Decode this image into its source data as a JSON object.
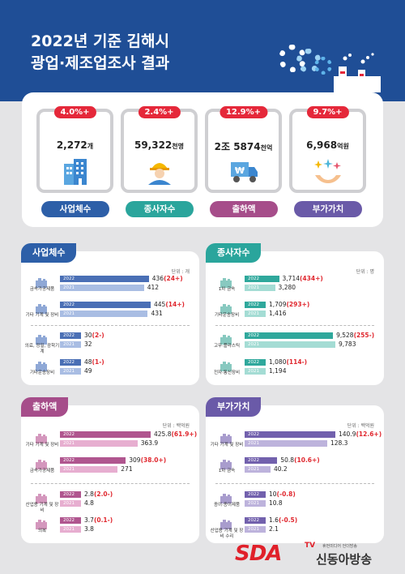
{
  "title_line1": "2022년 기준 김해시",
  "title_line2": "광업·제조업조사 결과",
  "kpis": [
    {
      "pct": "4.0%+",
      "value": "2,272",
      "unit": "개",
      "label": "사업체수",
      "color": "#2d5fa8",
      "icon": "building-icon"
    },
    {
      "pct": "2.4%+",
      "value": "59,322",
      "unit": "천명",
      "label": "종사자수",
      "color": "#2aa59c",
      "icon": "worker-icon"
    },
    {
      "pct": "12.9%+",
      "value": "2조 5874",
      "unit": "천억",
      "label": "출하액",
      "color": "#a64d8a",
      "icon": "truck-icon"
    },
    {
      "pct": "9.7%+",
      "value": "6,968",
      "unit": "억원",
      "label": "부가가치",
      "color": "#6a5aa8",
      "icon": "hands-sparkle-icon"
    }
  ],
  "chart_data": [
    {
      "type": "bar",
      "orientation": "horizontal",
      "title": "사업체수",
      "unit": "단위 : 개",
      "categories": [
        "금속가공제품",
        "기타 기계 및 장비",
        "의료, 정밀, 광학기계",
        "기타운송장비"
      ],
      "series": [
        {
          "name": "2022",
          "values": [
            436,
            445,
            30,
            48
          ]
        },
        {
          "name": "2021",
          "values": [
            412,
            431,
            32,
            49
          ]
        }
      ],
      "changes": [
        "(24+)",
        "(14+)",
        "(2-)",
        "(1-)"
      ]
    },
    {
      "type": "bar",
      "orientation": "horizontal",
      "title": "종사자수",
      "unit": "단위 : 명",
      "categories": [
        "1차 금속",
        "기타운송장비",
        "고무·플라스틱",
        "전자·통신장비"
      ],
      "series": [
        {
          "name": "2022",
          "values": [
            3714,
            1709,
            9528,
            1080
          ]
        },
        {
          "name": "2021",
          "values": [
            3280,
            1416,
            9783,
            1194
          ]
        }
      ],
      "labels_2022": [
        "3,714",
        "1,709",
        "9,528",
        "1,080"
      ],
      "labels_2021": [
        "3,280",
        "1,416",
        "9,783",
        "1,194"
      ],
      "changes": [
        "(434+)",
        "(293+)",
        "(255-)",
        "(114-)"
      ]
    },
    {
      "type": "bar",
      "orientation": "horizontal",
      "title": "출하액",
      "unit": "단위 : 백억원",
      "categories": [
        "기타 기계 및 장비",
        "금속가공제품",
        "산업용 기계 및 장비",
        "의복"
      ],
      "series": [
        {
          "name": "2022",
          "values": [
            425.8,
            309.0,
            2.8,
            3.7
          ]
        },
        {
          "name": "2021",
          "values": [
            363.9,
            271.0,
            4.8,
            3.8
          ]
        }
      ],
      "changes": [
        "(61.9+)",
        "(38.0+)",
        "(2.0-)",
        "(0.1-)"
      ]
    },
    {
      "type": "bar",
      "orientation": "horizontal",
      "title": "부가가치",
      "unit": "단위 : 백억원",
      "categories": [
        "기타 기계 및 장비",
        "1차 금속",
        "종이·종이제품",
        "산업용 기계 및 장비 수리"
      ],
      "series": [
        {
          "name": "2022",
          "values": [
            140.9,
            50.8,
            10.0,
            1.6
          ]
        },
        {
          "name": "2021",
          "values": [
            128.3,
            40.2,
            10.8,
            2.1
          ]
        }
      ],
      "changes": [
        "(12.6+)",
        "(10.6+)",
        "(-0.8)",
        "(-0.5)"
      ]
    }
  ],
  "logo": {
    "sda": "SDA",
    "tv": "TV",
    "small": "휴먼미디어 언더방송",
    "name": "신동아방송"
  }
}
